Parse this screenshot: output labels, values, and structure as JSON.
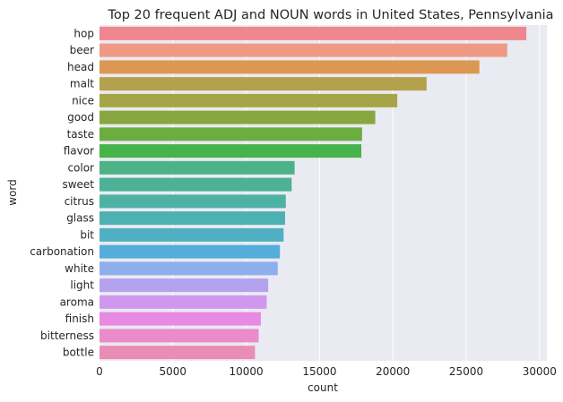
{
  "chart_data": {
    "type": "bar",
    "orientation": "horizontal",
    "title": "Top 20 frequent ADJ and NOUN words in United States, Pennsylvania",
    "xlabel": "count",
    "ylabel": "word",
    "categories": [
      "hop",
      "beer",
      "head",
      "malt",
      "nice",
      "good",
      "taste",
      "flavor",
      "color",
      "sweet",
      "citrus",
      "glass",
      "bit",
      "carbonation",
      "white",
      "light",
      "aroma",
      "finish",
      "bitterness",
      "bottle"
    ],
    "values": [
      29100,
      27800,
      25900,
      22300,
      20300,
      18800,
      17900,
      17850,
      13300,
      13100,
      12700,
      12650,
      12550,
      12300,
      12150,
      11500,
      11400,
      11000,
      10850,
      10600
    ],
    "colors": [
      "#f0878e",
      "#ee9a85",
      "#dc9852",
      "#b3a14b",
      "#a5a547",
      "#88a83f",
      "#6bad3f",
      "#46b34b",
      "#4cb386",
      "#4cb195",
      "#4db1a4",
      "#4db0b2",
      "#4fb0c2",
      "#54addb",
      "#8faeec",
      "#b5a2ef",
      "#cf98ee",
      "#e88ae3",
      "#eb8bc9",
      "#ea8cb6"
    ],
    "xticks": [
      0,
      5000,
      10000,
      15000,
      20000,
      25000,
      30000
    ],
    "xtick_labels": [
      "0",
      "5000",
      "10000",
      "15000",
      "20000",
      "25000",
      "30000"
    ],
    "xlim": [
      0,
      30500
    ],
    "grid": true,
    "background": "#eaeaf2"
  }
}
